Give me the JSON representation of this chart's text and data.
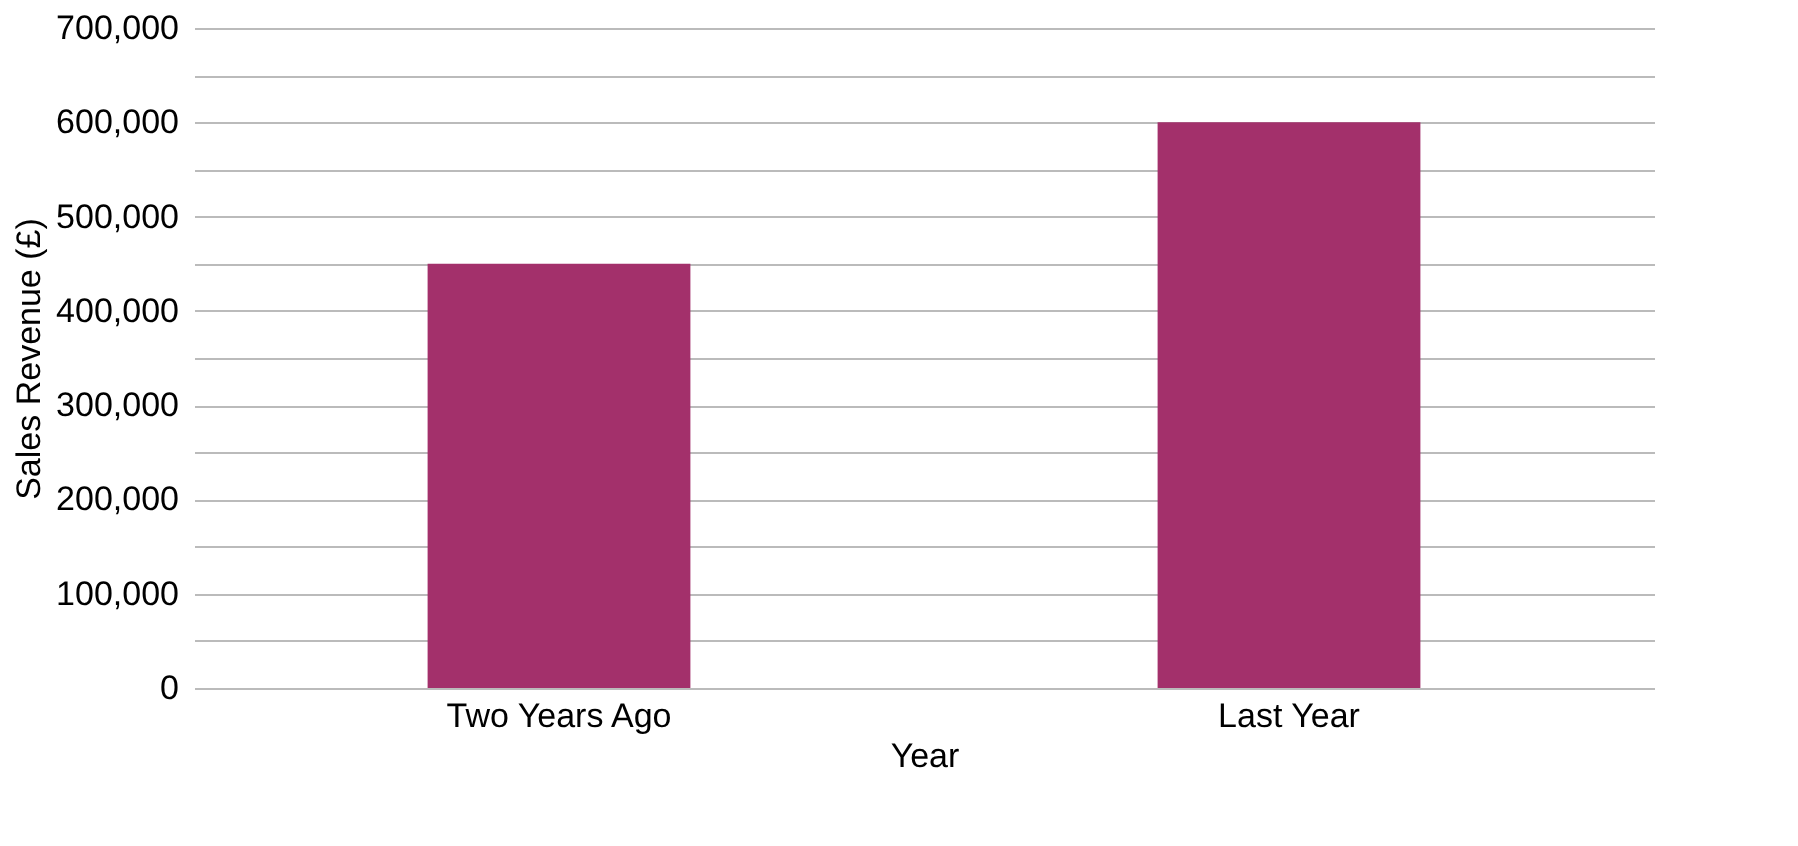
{
  "chart_data": {
    "type": "bar",
    "xlabel": "Year",
    "ylabel": "Sales Revenue (£)",
    "categories": [
      "Two Years Ago",
      "Last Year"
    ],
    "values": [
      450000,
      600000
    ],
    "color": "#a3306b",
    "ylim": [
      0,
      700000
    ],
    "yticks": [
      0,
      {
        "value": 50000,
        "label": null
      },
      {
        "value": 100000,
        "label": "100,000"
      },
      {
        "value": 150000,
        "label": null
      },
      {
        "value": 200000,
        "label": "200,000"
      },
      {
        "value": 250000,
        "label": null
      },
      {
        "value": 300000,
        "label": "300,000"
      },
      {
        "value": 350000,
        "label": null
      },
      {
        "value": 400000,
        "label": "400,000"
      },
      {
        "value": 450000,
        "label": null
      },
      {
        "value": 500000,
        "label": "500,000"
      },
      {
        "value": 550000,
        "label": null
      },
      {
        "value": 600000,
        "label": "600,000"
      },
      {
        "value": 650000,
        "label": null
      },
      {
        "value": 700000,
        "label": "700,000"
      }
    ],
    "grid": "y"
  }
}
